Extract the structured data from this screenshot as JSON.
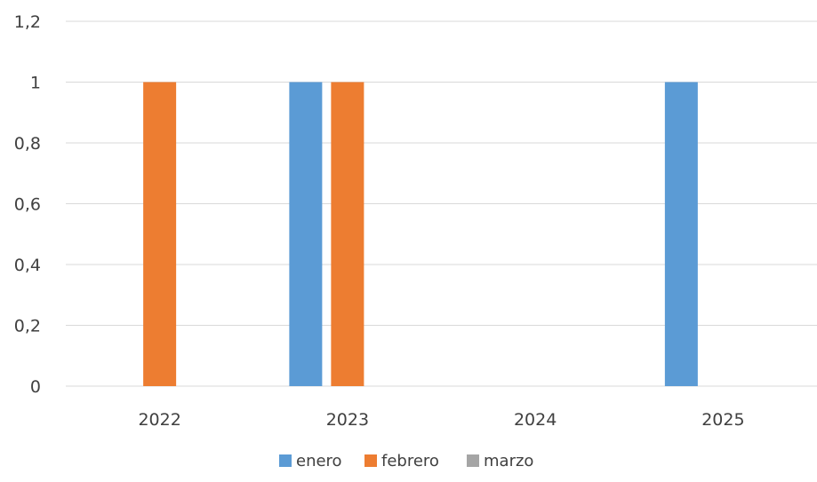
{
  "chart_data": {
    "type": "bar",
    "categories": [
      "2022",
      "2023",
      "2024",
      "2025"
    ],
    "series": [
      {
        "name": "enero",
        "values": [
          0,
          1,
          0,
          1
        ],
        "color": "#5B9BD5"
      },
      {
        "name": "febrero",
        "values": [
          1,
          1,
          0,
          0
        ],
        "color": "#ED7D31"
      },
      {
        "name": "marzo",
        "values": [
          0,
          0,
          0,
          0
        ],
        "color": "#A5A5A5"
      }
    ],
    "yticks": [
      "0",
      "0,2",
      "0,4",
      "0,6",
      "0,8",
      "1",
      "1,2"
    ],
    "ylim": [
      0,
      1.2
    ],
    "grid": true,
    "legend_position": "bottom"
  }
}
